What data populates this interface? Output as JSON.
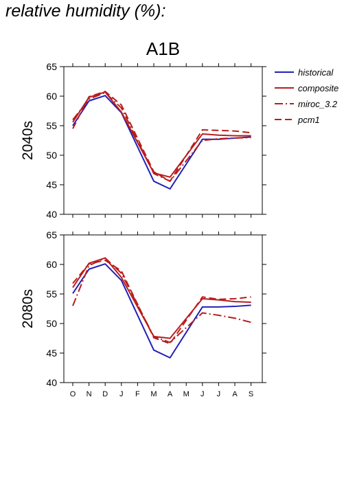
{
  "header": {
    "text": "relative humidity (%):"
  },
  "chart_data": {
    "type": "line",
    "title": "A1B",
    "categories": [
      "O",
      "N",
      "D",
      "J",
      "F",
      "M",
      "A",
      "M",
      "J",
      "J",
      "A",
      "S"
    ],
    "ylim": [
      40,
      65
    ],
    "yticks": [
      40,
      45,
      50,
      55,
      60,
      65
    ],
    "legend": {
      "placement": "right",
      "entries": [
        {
          "name": "historical",
          "color": "#2020b8",
          "dash": "solid"
        },
        {
          "name": "composite",
          "color": "#b81c1c",
          "dash": "solid"
        },
        {
          "name": "miroc_3.2",
          "color": "#b81c1c",
          "dash": "dashdot"
        },
        {
          "name": "pcm1",
          "color": "#b81c1c",
          "dash": "dashed"
        }
      ]
    },
    "panels": [
      {
        "ylabel": "2040s",
        "series": [
          {
            "name": "historical",
            "values": [
              55.0,
              59.2,
              60.1,
              57.2,
              null,
              45.6,
              44.3,
              null,
              52.7,
              52.7,
              52.9,
              53.1
            ]
          },
          {
            "name": "composite",
            "values": [
              55.6,
              59.8,
              60.7,
              57.3,
              null,
              47.0,
              46.3,
              null,
              53.6,
              53.4,
              53.3,
              53.3
            ]
          },
          {
            "name": "miroc_3.2",
            "values": [
              56.0,
              59.5,
              60.6,
              58.0,
              null,
              46.9,
              45.6,
              null,
              52.5,
              52.8,
              52.9,
              53.0
            ]
          },
          {
            "name": "pcm1",
            "values": [
              54.5,
              59.9,
              60.8,
              58.5,
              null,
              47.2,
              45.6,
              null,
              54.3,
              54.2,
              54.1,
              53.8
            ]
          }
        ]
      },
      {
        "ylabel": "2080s",
        "series": [
          {
            "name": "historical",
            "values": [
              55.1,
              59.2,
              60.1,
              57.3,
              null,
              45.5,
              44.2,
              null,
              52.8,
              52.8,
              52.9,
              53.1
            ]
          },
          {
            "name": "composite",
            "values": [
              56.1,
              60.2,
              61.1,
              57.8,
              null,
              47.8,
              47.5,
              null,
              54.2,
              54.0,
              53.7,
              53.6
            ]
          },
          {
            "name": "miroc_3.2",
            "values": [
              53.0,
              59.8,
              61.1,
              58.5,
              null,
              47.8,
              46.8,
              null,
              51.8,
              51.4,
              50.9,
              50.2
            ]
          },
          {
            "name": "pcm1",
            "values": [
              56.8,
              60.1,
              60.7,
              58.9,
              null,
              47.6,
              46.6,
              null,
              54.5,
              54.1,
              54.2,
              54.5
            ]
          }
        ]
      }
    ]
  }
}
